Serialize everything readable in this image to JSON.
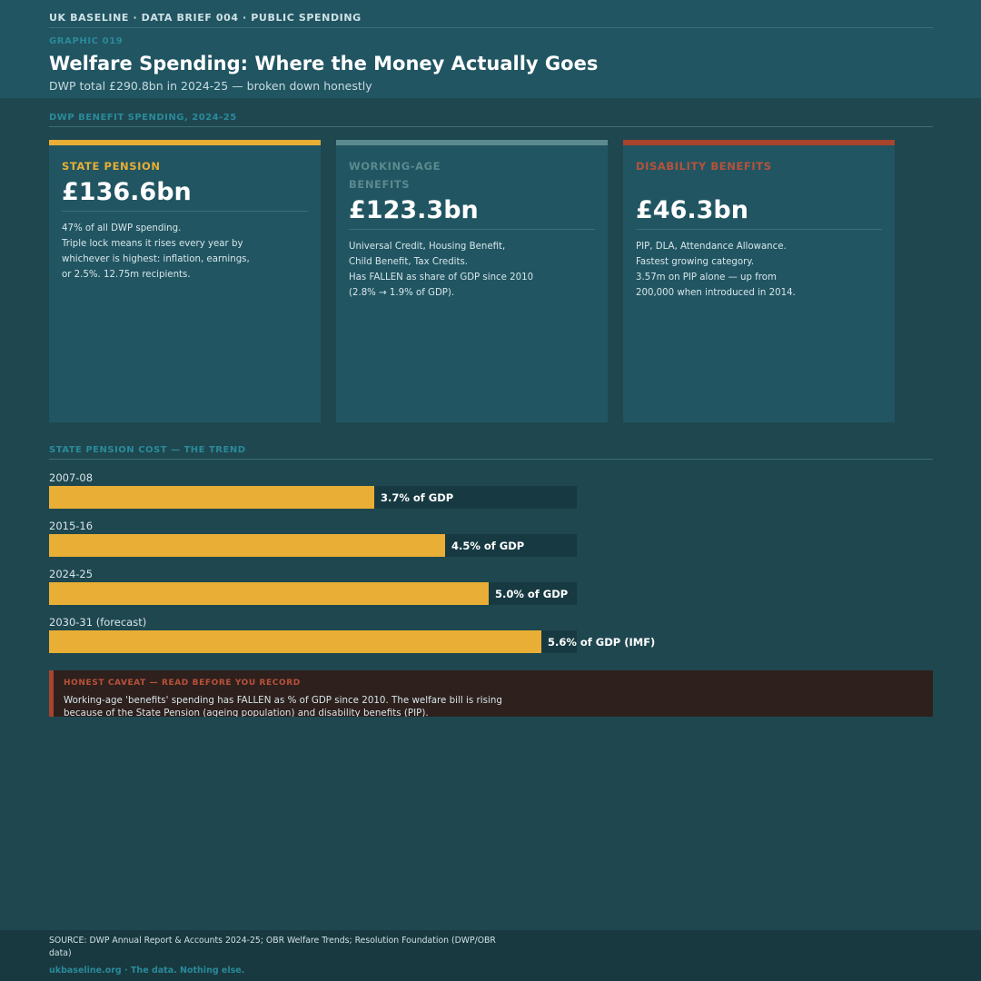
{
  "header": {
    "kicker": "UK BASELINE  ·  DATA BRIEF 004  ·  PUBLIC SPENDING",
    "graphic_id": "GRAPHIC 019",
    "title": "Welfare Spending: Where the Money Actually Goes",
    "subtitle": "DWP total £290.8bn in 2024-25 — broken down honestly"
  },
  "colors": {
    "gold": "#e8ae35",
    "slate": "#5b8a8f",
    "red": "#a8442d",
    "teal_label": "#2a8a9a"
  },
  "cards_section": {
    "label": "DWP BENEFIT SPENDING, 2024-25",
    "cards": [
      {
        "category": "State Pension",
        "amount": "£136.6bn",
        "description_lines": [
          "47% of all DWP spending.",
          "Triple lock means it rises every year by",
          "whichever is highest: inflation, earnings,",
          "or 2.5%. 12.75m recipients."
        ]
      },
      {
        "category": "Working-age Benefits",
        "amount": "£123.3bn",
        "description_lines": [
          "Universal Credit, Housing Benefit,",
          "Child Benefit, Tax Credits.",
          "Has FALLEN as share of GDP since 2010",
          "(2.8% → 1.9% of GDP)."
        ]
      },
      {
        "category": "Disability Benefits",
        "amount": "£46.3bn",
        "description_lines": [
          "PIP, DLA, Attendance Allowance.",
          "Fastest growing category.",
          "3.57m on PIP alone — up from",
          "200,000 when introduced in 2014."
        ]
      }
    ]
  },
  "chart_section": {
    "label": "STATE PENSION COST — THE TREND"
  },
  "chart_data": {
    "type": "bar",
    "orientation": "horizontal",
    "title": "STATE PENSION COST — THE TREND",
    "categories": [
      "2007-08",
      "2015-16",
      "2024-25",
      "2030-31 (forecast)"
    ],
    "values": [
      3.7,
      4.5,
      5.0,
      5.6
    ],
    "value_labels": [
      "3.7% of GDP",
      "4.5% of GDP",
      "5.0% of GDP",
      "5.6% of GDP (IMF)"
    ],
    "unit": "% of GDP",
    "xlim": [
      0,
      6.0
    ],
    "grid": false,
    "legend": "none"
  },
  "caveat": {
    "title": "HONEST CAVEAT — READ BEFORE YOU RECORD",
    "text": "Working-age 'benefits' spending has FALLEN as % of GDP since 2010. The welfare bill is rising because of the State Pension (ageing population) and disability benefits (PIP)."
  },
  "footer": {
    "source": "SOURCE: DWP Annual Report & Accounts 2024-25; OBR Welfare Trends; Resolution Foundation (DWP/OBR data)",
    "site": "ukbaseline.org  ·  The data. Nothing else."
  }
}
